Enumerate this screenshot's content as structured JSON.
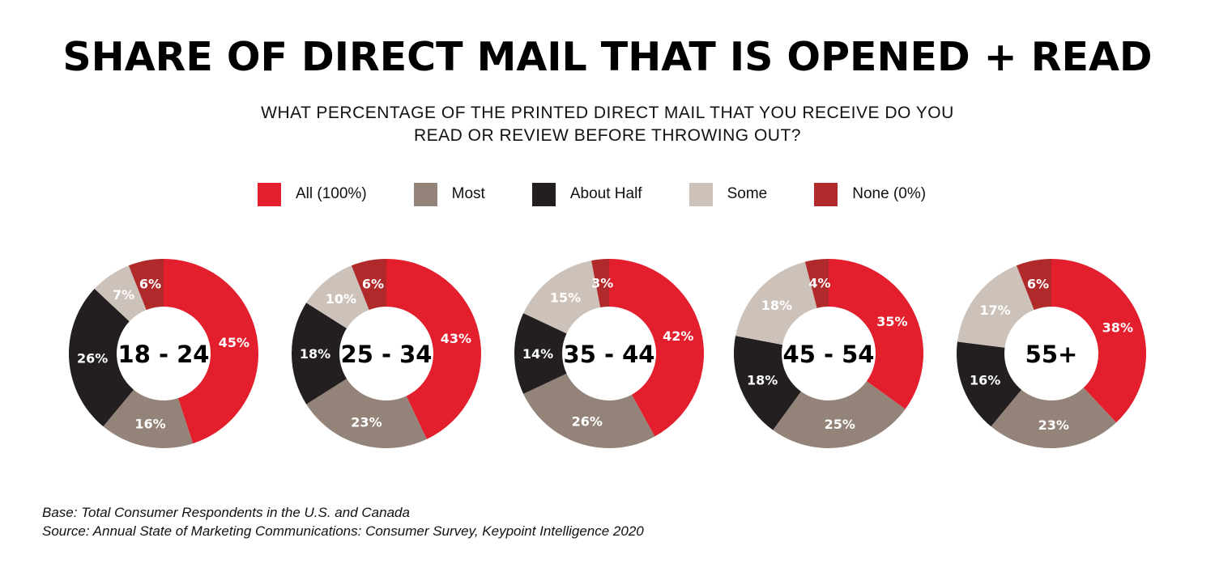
{
  "title": "SHARE OF DIRECT MAIL THAT IS OPENED + READ",
  "subtitle_line1": "WHAT PERCENTAGE OF THE PRINTED DIRECT MAIL THAT YOU RECEIVE DO YOU",
  "subtitle_line2": "READ OR REVIEW BEFORE THROWING OUT?",
  "footnote_base": "Base: Total Consumer Respondents in the U.S. and Canada",
  "footnote_source": "Source: Annual State of Marketing Communications: Consumer Survey, Keypoint Intelligence 2020",
  "chart_data": {
    "type": "donut",
    "legend_placement": "top",
    "legend": [
      {
        "name": "All (100%)",
        "color": "#e31e2d"
      },
      {
        "name": "Most",
        "color": "#938378"
      },
      {
        "name": "About Half",
        "color": "#231f20"
      },
      {
        "name": "Some",
        "color": "#cdc2ba"
      },
      {
        "name": "None (0%)",
        "color": "#b0292b"
      }
    ],
    "charts": [
      {
        "label": "18 - 24",
        "values": [
          45,
          16,
          26,
          7,
          6
        ]
      },
      {
        "label": "25 - 34",
        "values": [
          43,
          23,
          18,
          10,
          6
        ]
      },
      {
        "label": "35 - 44",
        "values": [
          42,
          26,
          14,
          15,
          3
        ]
      },
      {
        "label": "45 - 54",
        "values": [
          35,
          25,
          18,
          18,
          4
        ]
      },
      {
        "label": "55+",
        "values": [
          38,
          23,
          16,
          17,
          6
        ]
      }
    ],
    "unit": "%"
  }
}
